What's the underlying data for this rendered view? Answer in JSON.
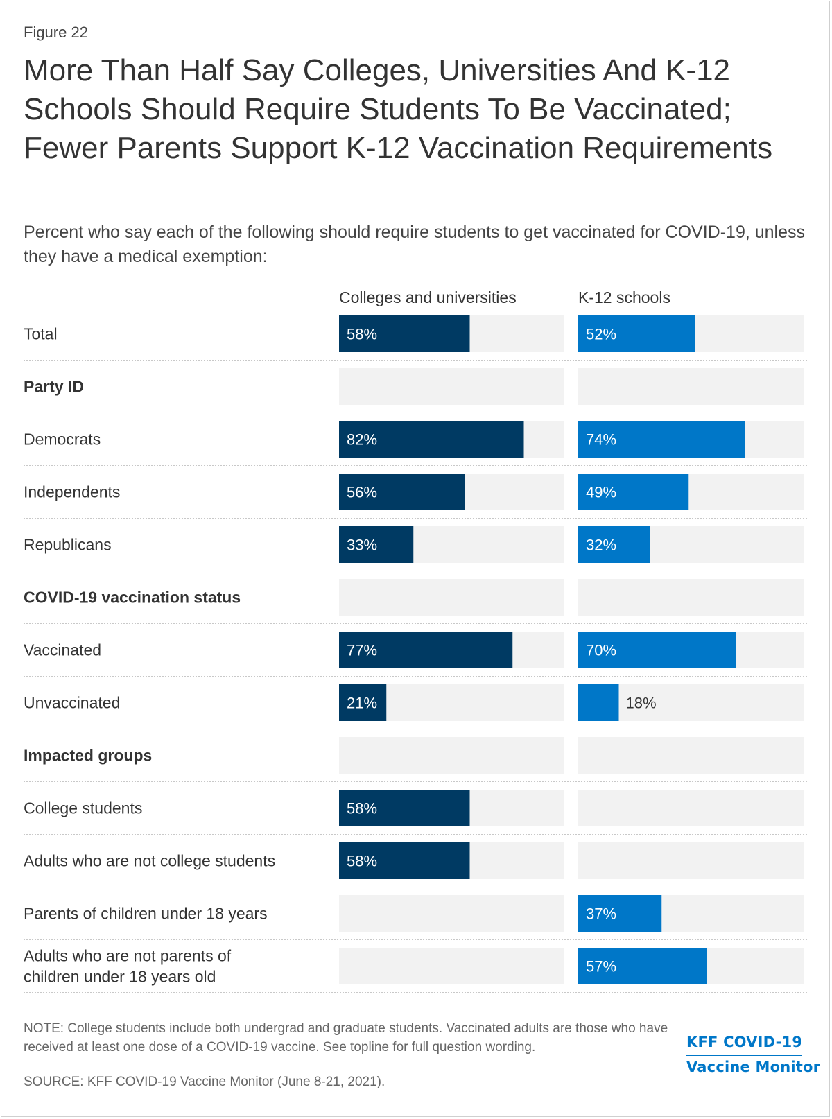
{
  "figure_label": "Figure 22",
  "title": "More Than Half Say Colleges, Universities And K-12 Schools Should Require Students To Be Vaccinated; Fewer Parents Support K-12 Vaccination Requirements",
  "subtitle": "Percent who say each of the following should require students to get vaccinated for COVID-19, unless they have a medical exemption:",
  "note": "NOTE: College students include both undergrad and graduate students. Vaccinated adults are those who have received at least one dose of a COVID-19 vaccine. See topline for full question wording.",
  "source": "SOURCE: KFF COVID-19 Vaccine Monitor (June 8-21, 2021).",
  "logo": {
    "line1": "KFF COVID-19",
    "line2": "Vaccine Monitor"
  },
  "colors": {
    "colleges": "#003a63",
    "k12": "#0077c8",
    "track": "#f2f2f2",
    "divider": "#c8c8c8"
  },
  "chart_data": {
    "type": "bar",
    "orientation": "horizontal",
    "title": "More Than Half Say Colleges, Universities And K-12 Schools Should Require Students To Be Vaccinated; Fewer Parents Support K-12 Vaccination Requirements",
    "xlim": [
      0,
      100
    ],
    "value_suffix": "%",
    "series": [
      {
        "name": "Colleges and universities",
        "key": "colleges"
      },
      {
        "name": "K-12 schools",
        "key": "k12"
      }
    ],
    "rows": [
      {
        "label": "Total",
        "header": false,
        "colleges": 58,
        "k12": 52
      },
      {
        "label": "Party ID",
        "header": true,
        "colleges": null,
        "k12": null
      },
      {
        "label": "Democrats",
        "header": false,
        "colleges": 82,
        "k12": 74
      },
      {
        "label": "Independents",
        "header": false,
        "colleges": 56,
        "k12": 49
      },
      {
        "label": "Republicans",
        "header": false,
        "colleges": 33,
        "k12": 32
      },
      {
        "label": "COVID-19 vaccination status",
        "header": true,
        "colleges": null,
        "k12": null
      },
      {
        "label": "Vaccinated",
        "header": false,
        "colleges": 77,
        "k12": 70
      },
      {
        "label": "Unvaccinated",
        "header": false,
        "colleges": 21,
        "k12": 18
      },
      {
        "label": "Impacted groups",
        "header": true,
        "colleges": null,
        "k12": null
      },
      {
        "label": "College students",
        "header": false,
        "colleges": 58,
        "k12": null
      },
      {
        "label": "Adults who are not college students",
        "header": false,
        "colleges": 58,
        "k12": null
      },
      {
        "label": "Parents of children under 18 years",
        "header": false,
        "colleges": null,
        "k12": 37
      },
      {
        "label": "Adults who are not parents of children under 18 years old",
        "header": false,
        "colleges": null,
        "k12": 57
      }
    ]
  }
}
